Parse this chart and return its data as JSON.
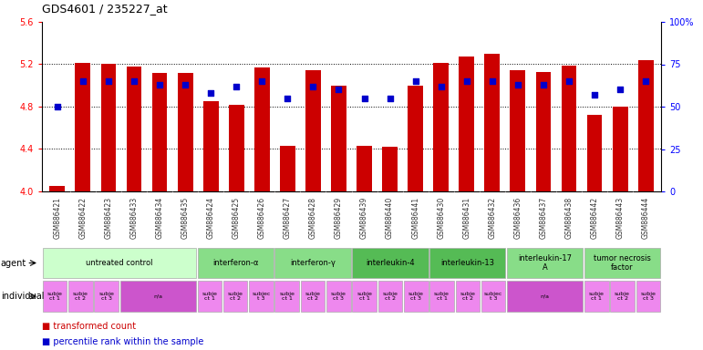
{
  "title": "GDS4601 / 235227_at",
  "samples": [
    "GSM886421",
    "GSM886422",
    "GSM886423",
    "GSM886433",
    "GSM886434",
    "GSM886435",
    "GSM886424",
    "GSM886425",
    "GSM886426",
    "GSM886427",
    "GSM886428",
    "GSM886429",
    "GSM886439",
    "GSM886440",
    "GSM886441",
    "GSM886430",
    "GSM886431",
    "GSM886432",
    "GSM886436",
    "GSM886437",
    "GSM886438",
    "GSM886442",
    "GSM886443",
    "GSM886444"
  ],
  "bar_values": [
    4.05,
    5.21,
    5.2,
    5.18,
    5.12,
    5.12,
    4.85,
    4.82,
    5.17,
    4.43,
    5.14,
    5.0,
    4.43,
    4.42,
    5.0,
    5.21,
    5.27,
    5.3,
    5.14,
    5.13,
    5.19,
    4.72,
    4.8,
    5.24
  ],
  "percentile_values": [
    50,
    65,
    65,
    65,
    63,
    63,
    58,
    62,
    65,
    55,
    62,
    60,
    55,
    55,
    65,
    62,
    65,
    65,
    63,
    63,
    65,
    57,
    60,
    65
  ],
  "ylim_left": [
    4.0,
    5.6
  ],
  "ylim_right": [
    0,
    100
  ],
  "yticks_left": [
    4.0,
    4.4,
    4.8,
    5.2,
    5.6
  ],
  "yticks_right": [
    0,
    25,
    50,
    75,
    100
  ],
  "bar_color": "#cc0000",
  "percentile_color": "#0000cc",
  "agent_groups": [
    {
      "label": "untreated control",
      "start": 0,
      "end": 5,
      "color": "#ccffcc"
    },
    {
      "label": "interferon-α",
      "start": 6,
      "end": 8,
      "color": "#88dd88"
    },
    {
      "label": "interferon-γ",
      "start": 9,
      "end": 11,
      "color": "#88dd88"
    },
    {
      "label": "interleukin-4",
      "start": 12,
      "end": 14,
      "color": "#55bb55"
    },
    {
      "label": "interleukin-13",
      "start": 15,
      "end": 17,
      "color": "#55bb55"
    },
    {
      "label": "interleukin-17\nA",
      "start": 18,
      "end": 20,
      "color": "#88dd88"
    },
    {
      "label": "tumor necrosis\nfactor",
      "start": 21,
      "end": 23,
      "color": "#88dd88"
    }
  ],
  "indiv_cells": [
    {
      "start": 0,
      "end": 0,
      "label": "subje\nct 1",
      "color": "#ee88ee"
    },
    {
      "start": 1,
      "end": 1,
      "label": "subje\nct 2",
      "color": "#ee88ee"
    },
    {
      "start": 2,
      "end": 2,
      "label": "subje\nct 3",
      "color": "#ee88ee"
    },
    {
      "start": 3,
      "end": 5,
      "label": "n/a",
      "color": "#cc55cc"
    },
    {
      "start": 6,
      "end": 6,
      "label": "subje\nct 1",
      "color": "#ee88ee"
    },
    {
      "start": 7,
      "end": 7,
      "label": "subje\nct 2",
      "color": "#ee88ee"
    },
    {
      "start": 8,
      "end": 8,
      "label": "subjec\nt 3",
      "color": "#ee88ee"
    },
    {
      "start": 9,
      "end": 9,
      "label": "subje\nct 1",
      "color": "#ee88ee"
    },
    {
      "start": 10,
      "end": 10,
      "label": "subje\nct 2",
      "color": "#ee88ee"
    },
    {
      "start": 11,
      "end": 11,
      "label": "subje\nct 3",
      "color": "#ee88ee"
    },
    {
      "start": 12,
      "end": 12,
      "label": "subje\nct 1",
      "color": "#ee88ee"
    },
    {
      "start": 13,
      "end": 13,
      "label": "subje\nct 2",
      "color": "#ee88ee"
    },
    {
      "start": 14,
      "end": 14,
      "label": "subje\nct 3",
      "color": "#ee88ee"
    },
    {
      "start": 15,
      "end": 15,
      "label": "subje\nct 1",
      "color": "#ee88ee"
    },
    {
      "start": 16,
      "end": 16,
      "label": "subje\nct 2",
      "color": "#ee88ee"
    },
    {
      "start": 17,
      "end": 17,
      "label": "subjec\nt 3",
      "color": "#ee88ee"
    },
    {
      "start": 18,
      "end": 20,
      "label": "n/a",
      "color": "#cc55cc"
    },
    {
      "start": 21,
      "end": 21,
      "label": "subje\nct 1",
      "color": "#ee88ee"
    },
    {
      "start": 22,
      "end": 22,
      "label": "subje\nct 2",
      "color": "#ee88ee"
    },
    {
      "start": 23,
      "end": 23,
      "label": "subje\nct 3",
      "color": "#ee88ee"
    }
  ],
  "bg_xtick": "#dddddd",
  "legend_bar_label": "transformed count",
  "legend_pct_label": "percentile rank within the sample"
}
